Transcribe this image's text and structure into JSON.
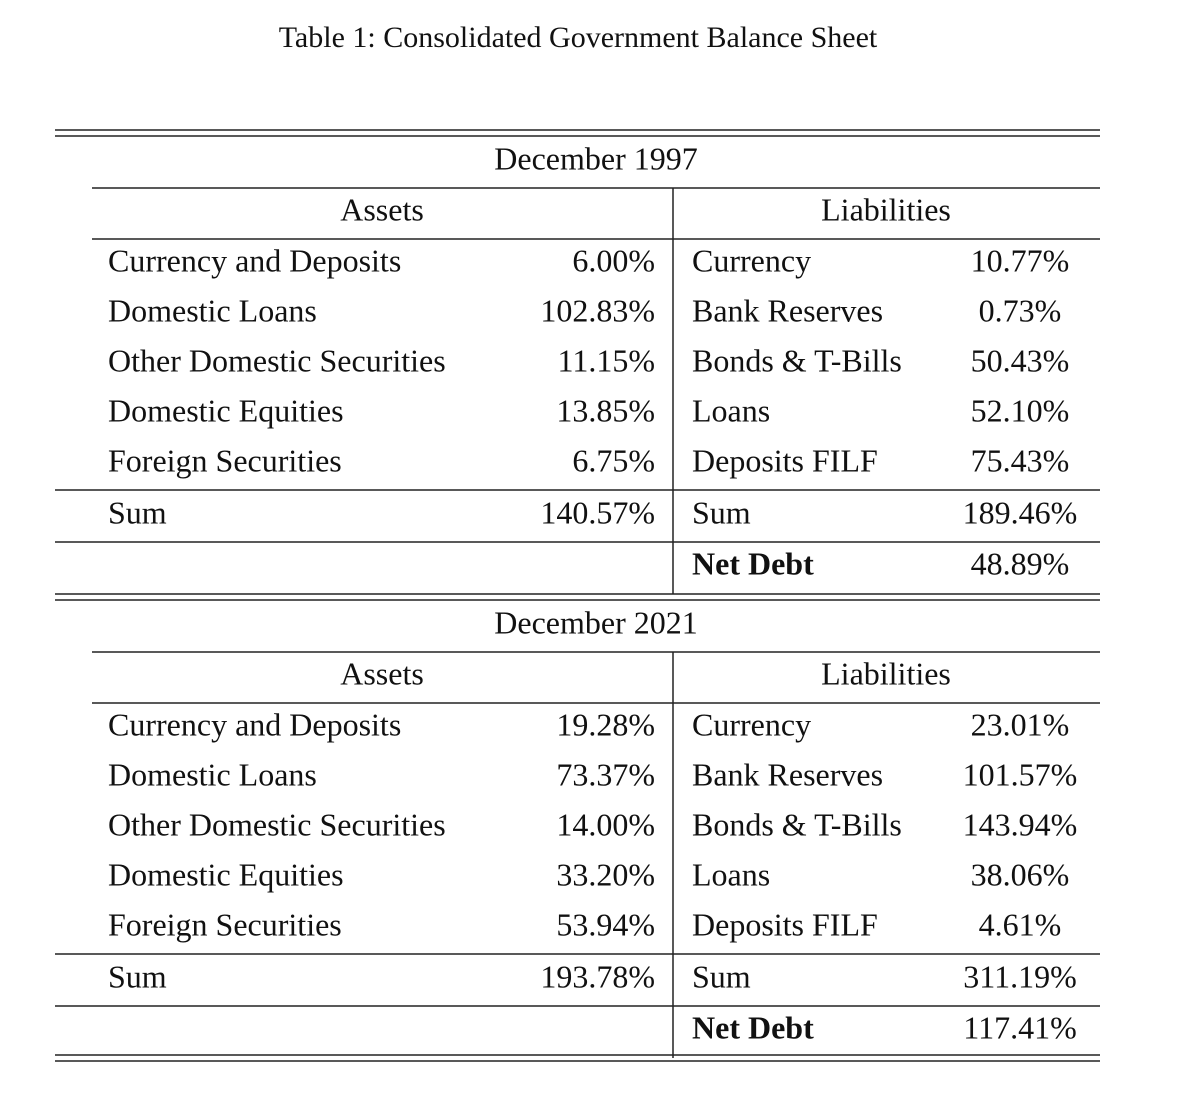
{
  "title": "Table 1: Consolidated Government Balance Sheet",
  "panels": [
    {
      "period": "December 1997",
      "assets_header": "Assets",
      "liabilities_header": "Liabilities",
      "assets": [
        [
          "Currency and Deposits",
          "6.00%"
        ],
        [
          "Domestic Loans",
          "102.83%"
        ],
        [
          "Other Domestic Securities",
          "11.15%"
        ],
        [
          "Domestic Equities",
          "13.85%"
        ],
        [
          "Foreign Securities",
          "6.75%"
        ]
      ],
      "liabilities": [
        [
          "Currency",
          "10.77%"
        ],
        [
          "Bank Reserves",
          "0.73%"
        ],
        [
          "Bonds & T-Bills",
          "50.43%"
        ],
        [
          "Loans",
          "52.10%"
        ],
        [
          "Deposits FILF",
          "75.43%"
        ]
      ],
      "assets_sum": [
        "Sum",
        "140.57%"
      ],
      "liabilities_sum": [
        "Sum",
        "189.46%"
      ],
      "net_debt": [
        "Net Debt",
        "48.89%"
      ]
    },
    {
      "period": "December 2021",
      "assets_header": "Assets",
      "liabilities_header": "Liabilities",
      "assets": [
        [
          "Currency and Deposits",
          "19.28%"
        ],
        [
          "Domestic Loans",
          "73.37%"
        ],
        [
          "Other Domestic Securities",
          "14.00%"
        ],
        [
          "Domestic Equities",
          "33.20%"
        ],
        [
          "Foreign Securities",
          "53.94%"
        ]
      ],
      "liabilities": [
        [
          "Currency",
          "23.01%"
        ],
        [
          "Bank Reserves",
          "101.57%"
        ],
        [
          "Bonds & T-Bills",
          "143.94%"
        ],
        [
          "Loans",
          "38.06%"
        ],
        [
          "Deposits FILF",
          "4.61%"
        ]
      ],
      "assets_sum": [
        "Sum",
        "193.78%"
      ],
      "liabilities_sum": [
        "Sum",
        "311.19%"
      ],
      "net_debt": [
        "Net Debt",
        "117.41%"
      ]
    }
  ]
}
